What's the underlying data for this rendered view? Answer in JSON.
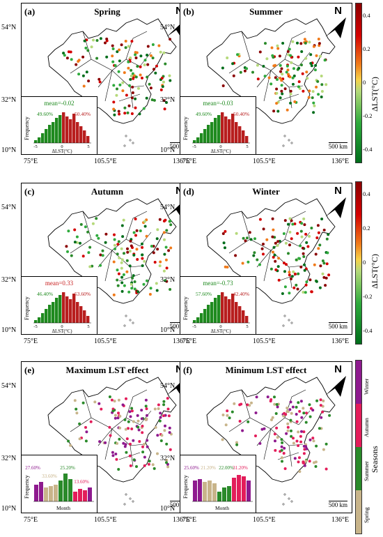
{
  "latitudes": [
    "54°N",
    "32°N",
    "10°N"
  ],
  "longitudes": [
    "75°E",
    "105.5°E",
    "136°E"
  ],
  "north_label": "N",
  "scale_label": "500 km",
  "colorbar_lst": {
    "title": "ΔLST(°C)",
    "ticks": [
      "0.4",
      "0.2",
      "0",
      "-0.2",
      "-0.4"
    ],
    "colors": [
      "#8b0000",
      "#d40000",
      "#f07a1a",
      "#f6d24a",
      "#b5d97a",
      "#2eaa3c",
      "#006d1b"
    ]
  },
  "colorbar_seasons": {
    "title": "Seasons",
    "labels": [
      "Winter",
      "Autumn",
      "Summer",
      "Spring"
    ],
    "colors": [
      "#8e1a8e",
      "#e31d5a",
      "#2a8a2a",
      "#c8b48a"
    ]
  },
  "panels": [
    {
      "label": "(a)",
      "title": "Spring",
      "hist": {
        "mean": "mean=-0.02",
        "mean_color": "#1f8a1f",
        "left_pct": "49.60%",
        "right_pct": "50.40%",
        "ylabel": "Frequency",
        "xlabel": "ΔLST(°C)",
        "ticks": [
          "-5",
          "0",
          "5"
        ]
      }
    },
    {
      "label": "(b)",
      "title": "Summer",
      "hist": {
        "mean": "mean=-0.03",
        "mean_color": "#1f8a1f",
        "left_pct": "49.60%",
        "right_pct": "50.40%",
        "ylabel": "Frequency",
        "xlabel": "ΔLST(°C)",
        "ticks": [
          "-5",
          "0",
          "5"
        ]
      }
    },
    {
      "label": "(c)",
      "title": "Autumn",
      "hist": {
        "mean": "mean=0.33",
        "mean_color": "#c81e1e",
        "left_pct": "46.40%",
        "right_pct": "53.60%",
        "ylabel": "Frequency",
        "xlabel": "ΔLST(°C)",
        "ticks": [
          "-5",
          "0",
          "5"
        ]
      }
    },
    {
      "label": "(d)",
      "title": "Winter",
      "hist": {
        "mean": "mean=-0.73",
        "mean_color": "#1f8a1f",
        "left_pct": "57.60%",
        "right_pct": "42.40%",
        "ylabel": "Frequency",
        "xlabel": "ΔLST(°C)",
        "ticks": [
          "-5",
          "0",
          "5"
        ]
      }
    },
    {
      "label": "(e)",
      "title": "Maximum LST effect",
      "bars": {
        "ylabel": "Frequency",
        "xlabel": "Month",
        "p1": "27.60%",
        "p2": "33.60%",
        "p3": "25.20%",
        "p4": "13.60%"
      }
    },
    {
      "label": "(f)",
      "title": "Minimum LST effect",
      "bars": {
        "ylabel": "Frequency",
        "xlabel": "Month",
        "p1": "25.60%",
        "p2": "21.20%",
        "p3": "22.00%",
        "p4": "31.20%"
      }
    }
  ]
}
